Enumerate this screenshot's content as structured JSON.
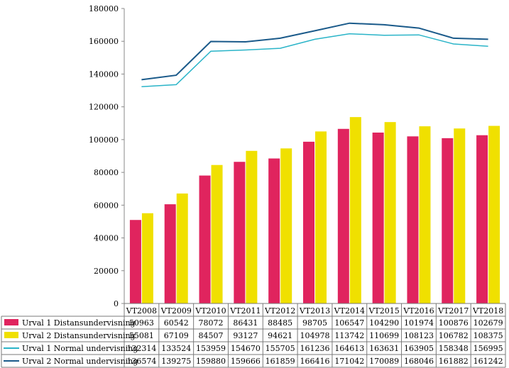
{
  "chart_data": {
    "type": "bar",
    "categories": [
      "VT2008",
      "VT2009",
      "VT2010",
      "VT2011",
      "VT2012",
      "VT2013",
      "VT2014",
      "VT2015",
      "VT2016",
      "VT2017",
      "VT2018"
    ],
    "ylim": [
      0,
      180000
    ],
    "yticks": [
      0,
      20000,
      40000,
      60000,
      80000,
      100000,
      120000,
      140000,
      160000,
      180000
    ],
    "grid": false,
    "legend": "data-table-below",
    "series": [
      {
        "name": "Urval 1 Distansundervisning",
        "kind": "bar",
        "color": "#e0245e",
        "values": [
          50963,
          60542,
          78072,
          86431,
          88485,
          98705,
          106547,
          104290,
          101974,
          100876,
          102679
        ]
      },
      {
        "name": "Urval 2 Distansundervisning",
        "kind": "bar",
        "color": "#f0e000",
        "values": [
          55081,
          67109,
          84507,
          93127,
          94621,
          104978,
          113742,
          110699,
          108123,
          106782,
          108375
        ]
      },
      {
        "name": "Urval 1 Normal undervisning",
        "kind": "line",
        "color": "#2ab4c8",
        "values": [
          132314,
          133524,
          153959,
          154670,
          155705,
          161236,
          164613,
          163631,
          163905,
          158348,
          156995
        ]
      },
      {
        "name": "Urval 2 Normal undervisning",
        "kind": "line",
        "color": "#1a5a8a",
        "values": [
          136574,
          139275,
          159880,
          159666,
          161859,
          166416,
          171042,
          170089,
          168046,
          161882,
          161242
        ]
      }
    ]
  }
}
